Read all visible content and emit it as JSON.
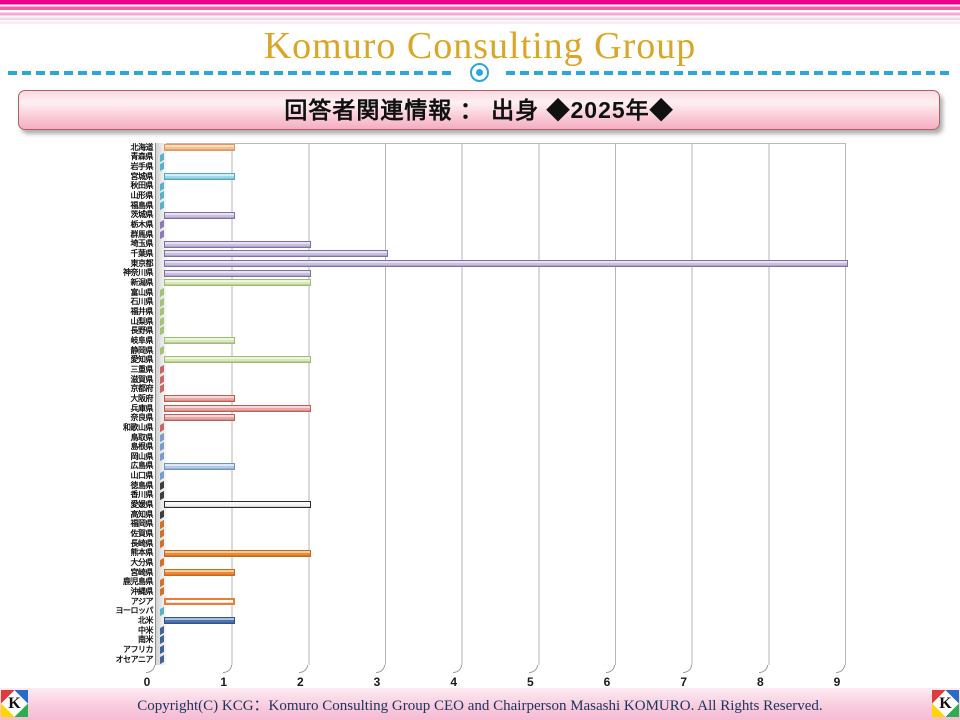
{
  "header": {
    "title": "Komuro Consulting Group"
  },
  "banner": {
    "title": "回答者関連情報 ： 出身 ◆2025年◆"
  },
  "footer": {
    "copyright": "Copyright(C)  KCG：Komuro Consulting Group CEO and Chairperson Masashi KOMURO. All Rights Reserved.",
    "logo_letter": "K"
  },
  "chart_data": {
    "type": "bar",
    "orientation": "horizontal",
    "title": "回答者関連情報 ： 出身 ◆2025年◆",
    "xlabel": "",
    "ylabel": "",
    "xlim": [
      0,
      9
    ],
    "xticks": [
      0,
      1,
      2,
      3,
      4,
      5,
      6,
      7,
      8,
      9
    ],
    "grid": true,
    "legend": "none",
    "categories": [
      "北海道",
      "青森県",
      "岩手県",
      "宮城県",
      "秋田県",
      "山形県",
      "福島県",
      "茨城県",
      "栃木県",
      "群馬県",
      "埼玉県",
      "千葉県",
      "東京都",
      "神奈川県",
      "新潟県",
      "富山県",
      "石川県",
      "福井県",
      "山梨県",
      "長野県",
      "岐阜県",
      "静岡県",
      "愛知県",
      "三重県",
      "滋賀県",
      "京都府",
      "大阪府",
      "兵庫県",
      "奈良県",
      "和歌山県",
      "鳥取県",
      "島根県",
      "岡山県",
      "広島県",
      "山口県",
      "徳島県",
      "香川県",
      "愛媛県",
      "高知県",
      "福岡県",
      "佐賀県",
      "長崎県",
      "熊本県",
      "大分県",
      "宮崎県",
      "鹿児島県",
      "沖縄県",
      "アジア",
      "ヨーロッパ",
      "北米",
      "中米",
      "南米",
      "アフリカ",
      "オセアニア"
    ],
    "values": [
      1,
      0,
      0,
      1,
      0,
      0,
      0,
      1,
      0,
      0,
      2,
      3,
      9,
      2,
      2,
      0,
      0,
      0,
      0,
      0,
      1,
      0,
      2,
      0,
      0,
      0,
      1,
      2,
      1,
      0,
      0,
      0,
      0,
      1,
      0,
      0,
      0,
      2,
      0,
      0,
      0,
      0,
      2,
      0,
      1,
      0,
      0,
      1,
      0,
      1,
      0,
      0,
      0,
      0
    ],
    "groups": [
      "hokkaido",
      "tohoku",
      "tohoku",
      "tohoku",
      "tohoku",
      "tohoku",
      "tohoku",
      "kanto",
      "kanto",
      "kanto",
      "kanto",
      "kanto",
      "kanto",
      "kanto",
      "chubu",
      "chubu",
      "chubu",
      "chubu",
      "chubu",
      "chubu",
      "chubu",
      "chubu",
      "chubu",
      "kinki",
      "kinki",
      "kinki",
      "kinki",
      "kinki",
      "kinki",
      "kinki",
      "chugoku",
      "chugoku",
      "chugoku",
      "chugoku",
      "chugoku",
      "shikoku",
      "shikoku",
      "shikoku",
      "shikoku",
      "kyushu",
      "kyushu",
      "kyushu",
      "kyushu",
      "kyushu",
      "kyushu",
      "kyushu",
      "kyushu",
      "asia",
      "europe",
      "namerica",
      "namerica",
      "namerica",
      "namerica",
      "namerica"
    ],
    "colors": {
      "hokkaido": {
        "fill": "#F9BE8C",
        "border": "#E8945A"
      },
      "tohoku": {
        "fill": "#9FD9E8",
        "border": "#4FA8C4"
      },
      "kanto": {
        "fill": "#C9BFE0",
        "border": "#8170A8"
      },
      "chubu": {
        "fill": "#D8E9B9",
        "border": "#9CBE6E"
      },
      "kinki": {
        "fill": "#E8A8A6",
        "border": "#C05B56"
      },
      "chugoku": {
        "fill": "#B3CBE8",
        "border": "#6E93C4"
      },
      "shikoku": {
        "fill": "#F2F2F0",
        "border": "#2B2B2B"
      },
      "kyushu": {
        "fill": "#EE8B30",
        "border": "#C9671B"
      },
      "asia": {
        "fill": "#FFFFFF",
        "border": "#ED7D31"
      },
      "europe": {
        "fill": "#9FD9E8",
        "border": "#4FA8C4"
      },
      "namerica": {
        "fill": "#4A77B4",
        "border": "#31538C"
      }
    },
    "accent_colors": {
      "stripe_magenta": "#EC008C",
      "title_gold": "#D9A629",
      "divider_cyan": "#2CA6DB",
      "banner_pink": "#F4AEC2",
      "footer_text_navy": "#17365D"
    }
  }
}
